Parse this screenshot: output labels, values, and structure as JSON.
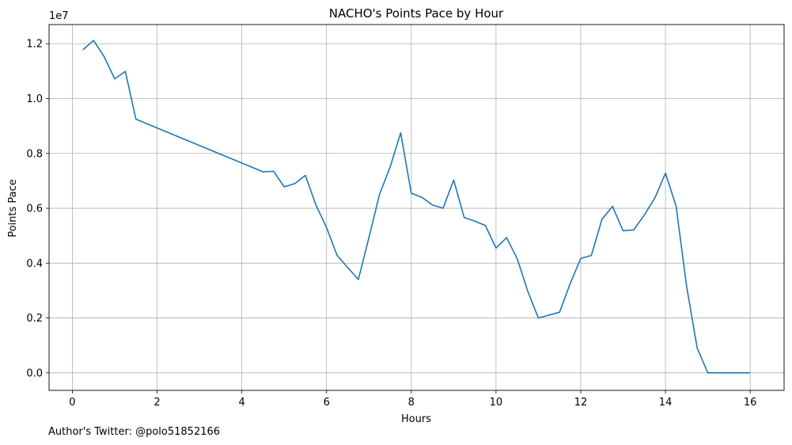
{
  "chart_data": {
    "type": "line",
    "title": "NACHO's Points Pace by Hour",
    "xlabel": "Hours",
    "ylabel": "Points Pace",
    "y_multiplier_label": "1e7",
    "xlim": [
      -0.55,
      16.8
    ],
    "ylim": [
      -0.064,
      1.27
    ],
    "x_ticks": [
      0,
      2,
      4,
      6,
      8,
      10,
      12,
      14,
      16
    ],
    "y_ticks": [
      0.0,
      0.2,
      0.4,
      0.6,
      0.8,
      1.0,
      1.2
    ],
    "x_tick_labels": [
      "0",
      "2",
      "4",
      "6",
      "8",
      "10",
      "12",
      "14",
      "16"
    ],
    "y_tick_labels": [
      "0.0",
      "0.2",
      "0.4",
      "0.6",
      "0.8",
      "1.0",
      "1.2"
    ],
    "grid": true,
    "series": [
      {
        "color": "#1f77b4",
        "x": [
          0.25,
          0.5,
          0.75,
          1.0,
          1.25,
          1.5,
          4.5,
          4.75,
          5.0,
          5.25,
          5.5,
          5.75,
          6.0,
          6.25,
          6.75,
          7.0,
          7.25,
          7.5,
          7.75,
          8.0,
          8.25,
          8.5,
          8.75,
          9.0,
          9.25,
          9.5,
          9.75,
          10.0,
          10.25,
          10.5,
          10.75,
          11.0,
          11.5,
          11.75,
          12.0,
          12.25,
          12.5,
          12.75,
          13.0,
          13.25,
          13.5,
          13.75,
          14.0,
          14.25,
          14.5,
          14.75,
          15.0,
          15.25,
          15.5,
          15.75,
          16.0
        ],
        "y": [
          1.178,
          1.212,
          1.153,
          1.072,
          1.099,
          0.925,
          0.733,
          0.735,
          0.678,
          0.69,
          0.72,
          0.612,
          0.53,
          0.428,
          0.34,
          0.493,
          0.65,
          0.75,
          0.875,
          0.655,
          0.64,
          0.612,
          0.6,
          0.703,
          0.566,
          0.553,
          0.537,
          0.455,
          0.493,
          0.416,
          0.297,
          0.2,
          0.221,
          0.325,
          0.417,
          0.428,
          0.56,
          0.607,
          0.518,
          0.521,
          0.575,
          0.638,
          0.728,
          0.608,
          0.315,
          0.09,
          0.0,
          0.0,
          0.0,
          0.0,
          0.0
        ]
      }
    ]
  },
  "footer": {
    "text": "Author's Twitter: @polo51852166"
  }
}
